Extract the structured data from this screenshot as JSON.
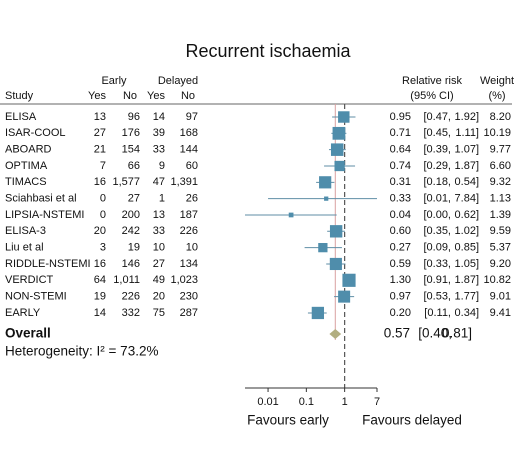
{
  "chart_data": {
    "type": "forest",
    "title": "Recurrent ischaemia",
    "headers": {
      "early": "Early",
      "delayed": "Delayed",
      "study": "Study",
      "yes": "Yes",
      "no": "No",
      "rr": "Relative risk",
      "ci": "(95% CI)",
      "weight": "Weight",
      "pct": "(%)"
    },
    "studies": [
      {
        "name": "ELISA",
        "early_yes": 13,
        "early_no": 96,
        "delayed_yes": 14,
        "delayed_no": 97,
        "rr": 0.95,
        "ci_low": {
          "value": 0.47,
          "label": "[0.47,"
        },
        "ci_high": {
          "value": 1.92,
          "label": "1.92]"
        },
        "weight": {
          "value": 8.2,
          "label": "8.20"
        }
      },
      {
        "name": "ISAR-COOL",
        "early_yes": 27,
        "early_no": 176,
        "delayed_yes": 39,
        "delayed_no": 168,
        "rr": 0.71,
        "ci_low": {
          "value": 0.45,
          "label": "[0.45,"
        },
        "ci_high": {
          "value": 1.11,
          "label": "1.11]"
        },
        "weight": 10.19
      },
      {
        "name": "ABOARD",
        "early_yes": 21,
        "early_no": 154,
        "delayed_yes": 33,
        "delayed_no": 144,
        "rr": 0.64,
        "ci_low": {
          "value": 0.39,
          "label": "[0.39,"
        },
        "ci_high": {
          "value": 1.07,
          "label": "1.07]"
        },
        "weight": 9.77
      },
      {
        "name": "OPTIMA",
        "early_yes": 7,
        "early_no": 66,
        "delayed_yes": 9,
        "delayed_no": 60,
        "rr": 0.74,
        "ci_low": {
          "value": 0.29,
          "label": "[0.29,"
        },
        "ci_high": {
          "value": 1.87,
          "label": "1.87]"
        },
        "weight": {
          "value": 6.6,
          "label": "6.60"
        }
      },
      {
        "name": "TIMACS",
        "early_yes": 16,
        "early_no": {
          "value": 1577,
          "label": "1,577"
        },
        "delayed_yes": 47,
        "delayed_no": {
          "value": 1391,
          "label": "1,391"
        },
        "rr": 0.31,
        "ci_low": {
          "value": 0.18,
          "label": "[0.18,"
        },
        "ci_high": {
          "value": 0.54,
          "label": "0.54]"
        },
        "weight": 9.32
      },
      {
        "name": "Sciahbasi et al",
        "early_yes": 0,
        "early_no": 27,
        "delayed_yes": 1,
        "delayed_no": 26,
        "rr": 0.33,
        "ci_low": {
          "value": 0.01,
          "label": "[0.01,"
        },
        "ci_high": {
          "value": 7.84,
          "label": "7.84]"
        },
        "weight": 1.13
      },
      {
        "name": "LIPSIA-NSTEMI",
        "early_yes": 0,
        "early_no": 200,
        "delayed_yes": 13,
        "delayed_no": 187,
        "rr": 0.04,
        "ci_low": {
          "value": 0,
          "label": "[0.00,"
        },
        "ci_high": {
          "value": 0.62,
          "label": "0.62]"
        },
        "weight": 1.39
      },
      {
        "name": "ELISA-3",
        "early_yes": 20,
        "early_no": 242,
        "delayed_yes": 33,
        "delayed_no": 226,
        "rr": {
          "value": 0.6,
          "label": "0.60"
        },
        "ci_low": {
          "value": 0.35,
          "label": "[0.35,"
        },
        "ci_high": {
          "value": 1.02,
          "label": "1.02]"
        },
        "weight": 9.59
      },
      {
        "name": "Liu et al",
        "early_yes": 3,
        "early_no": 19,
        "delayed_yes": 10,
        "delayed_no": 10,
        "rr": 0.27,
        "ci_low": {
          "value": 0.09,
          "label": "[0.09,"
        },
        "ci_high": {
          "value": 0.85,
          "label": "0.85]"
        },
        "weight": 5.37
      },
      {
        "name": "RIDDLE-NSTEMI",
        "early_yes": 16,
        "early_no": 146,
        "delayed_yes": 27,
        "delayed_no": 134,
        "rr": 0.59,
        "ci_low": {
          "value": 0.33,
          "label": "[0.33,"
        },
        "ci_high": {
          "value": 1.05,
          "label": "1.05]"
        },
        "weight": {
          "value": 9.2,
          "label": "9.20"
        }
      },
      {
        "name": "VERDICT",
        "early_yes": 64,
        "early_no": {
          "value": 1011,
          "label": "1,011"
        },
        "delayed_yes": 49,
        "delayed_no": {
          "value": 1023,
          "label": "1,023"
        },
        "rr": {
          "value": 1.3,
          "label": "1.30"
        },
        "ci_low": {
          "value": 0.91,
          "label": "[0.91,"
        },
        "ci_high": {
          "value": 1.87,
          "label": "1.87]"
        },
        "weight": 10.82
      },
      {
        "name": "NON-STEMI",
        "early_yes": 19,
        "early_no": 226,
        "delayed_yes": 20,
        "delayed_no": 230,
        "rr": 0.97,
        "ci_low": {
          "value": 0.53,
          "label": "[0.53,"
        },
        "ci_high": {
          "value": 1.77,
          "label": "1.77]"
        },
        "weight": 9.01
      },
      {
        "name": "EARLY",
        "early_yes": 14,
        "early_no": 332,
        "delayed_yes": 75,
        "delayed_no": 287,
        "rr": {
          "value": 0.2,
          "label": "0.20"
        },
        "ci_low": {
          "value": 0.11,
          "label": "[0.11,"
        },
        "ci_high": {
          "value": 0.34,
          "label": "0.34]"
        },
        "weight": 9.41
      }
    ],
    "overall": {
      "name": "Overall",
      "rr": 0.57,
      "ci_low": {
        "value": 0.4,
        "label": "[0.40,"
      },
      "ci_high": {
        "value": 0.81,
        "label": "0.81]"
      }
    },
    "heterogeneity": "Heterogeneity: I² = 73.2%",
    "null_line": 1,
    "xlim": [
      0.0025,
      7
    ],
    "xticks": [
      0.01,
      0.1,
      1,
      7
    ],
    "log_x": true,
    "xlabel_left": "Favours early",
    "xlabel_right": "Favours delayed",
    "color": "#4f8dab",
    "ci_color": "#5f8ea6",
    "diamond_color": "#b2ae80",
    "overall_line_color": "#d9a0a0"
  }
}
